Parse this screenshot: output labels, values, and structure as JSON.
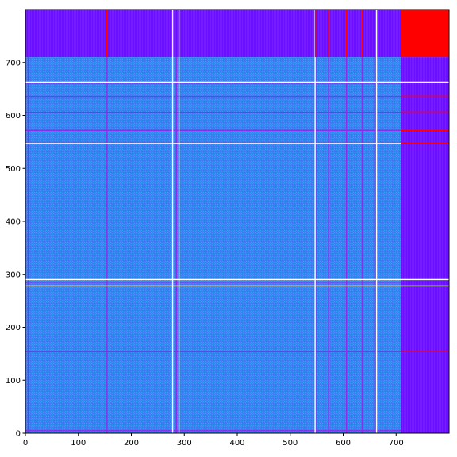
{
  "chart_data": {
    "type": "heatmap",
    "title": "",
    "xlabel": "",
    "ylabel": "",
    "xlim": [
      0,
      800
    ],
    "ylim": [
      0,
      800
    ],
    "x_ticks": [
      0,
      100,
      200,
      300,
      400,
      500,
      600,
      700
    ],
    "y_ticks": [
      0,
      100,
      200,
      300,
      400,
      500,
      600,
      700
    ],
    "matrix_size": 800,
    "blocks": [
      {
        "name": "main-block",
        "x": [
          0,
          710
        ],
        "y": [
          0,
          710
        ],
        "color": "#3a82f0",
        "texture": "#2f9af5"
      },
      {
        "name": "top-strip",
        "x": [
          0,
          710
        ],
        "y": [
          710,
          800
        ],
        "color": "#7a1cff",
        "texture": "#6b10ff"
      },
      {
        "name": "right-strip",
        "x": [
          710,
          800
        ],
        "y": [
          0,
          710
        ],
        "color": "#7a1cff",
        "texture": "#6b10ff"
      },
      {
        "name": "corner-block",
        "x": [
          710,
          800
        ],
        "y": [
          710,
          800
        ],
        "color": "#ff0000",
        "texture": "#ff0000"
      }
    ],
    "purple_lines": [
      5,
      154,
      285,
      548,
      572,
      606,
      636,
      661
    ],
    "white_gaps": [
      278,
      290,
      547,
      663
    ],
    "red_marks_right": [
      154,
      548,
      572,
      606,
      636
    ],
    "red_marks_top": [
      154,
      548,
      572,
      606,
      636
    ],
    "colors": {
      "blue": "#3a82f0",
      "purple": "#7a1cff",
      "line_purple": "#8a2ee8",
      "red": "#ff0000",
      "white": "#ffffff"
    }
  }
}
